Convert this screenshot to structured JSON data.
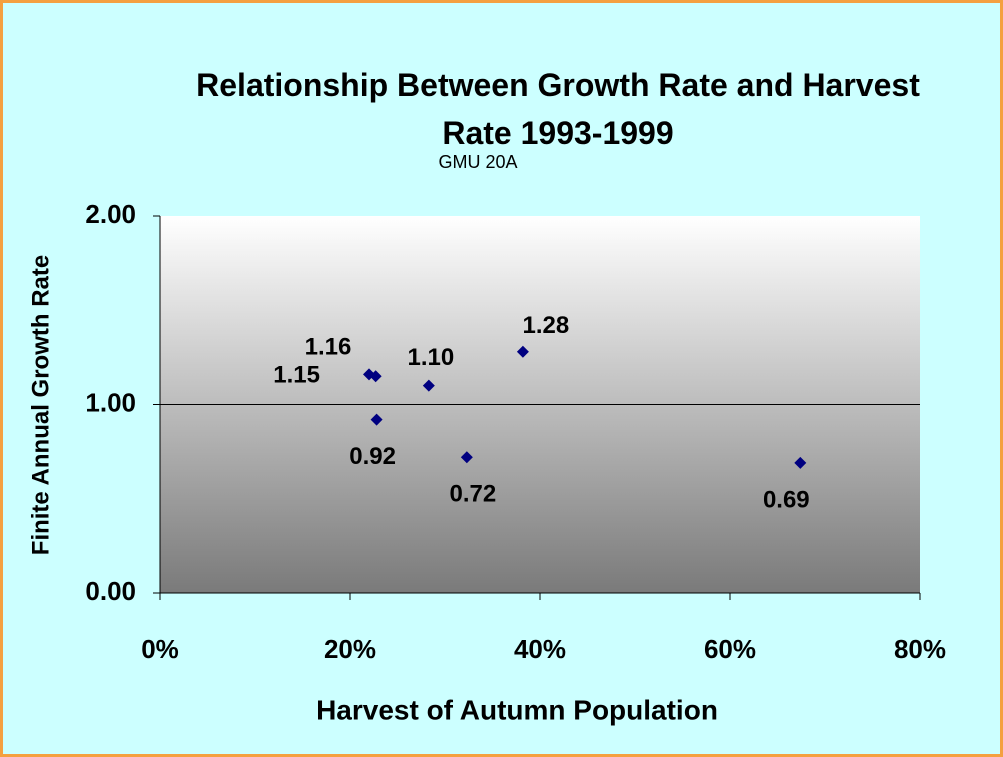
{
  "chart_data": {
    "type": "scatter",
    "title": "Relationship Between Growth Rate and Harvest Rate 1993-1999",
    "subtitle": "GMU 20A",
    "x_label": "Harvest of Autumn Population",
    "y_label": "Finite Annual Growth Rate",
    "x": [
      22,
      22.7,
      22.8,
      28.3,
      38.2,
      32.3,
      67.4
    ],
    "values": [
      1.16,
      1.15,
      0.92,
      1.1,
      1.28,
      0.72,
      0.69
    ],
    "value_labels": [
      "1.16",
      "1.15",
      "0.92",
      "1.10",
      "1.28",
      "0.72",
      "0.69"
    ],
    "color": "#000080",
    "xlim": [
      0,
      80
    ],
    "xticks": [
      {
        "value": 0,
        "label": "0%"
      },
      {
        "value": 20,
        "label": "20%"
      },
      {
        "value": 40,
        "label": "40%"
      },
      {
        "value": 60,
        "label": "60%"
      },
      {
        "value": 80,
        "label": "80%"
      }
    ],
    "ylim": [
      0,
      2
    ],
    "yticks": [
      {
        "value": 0,
        "label": "0.00"
      },
      {
        "value": 1,
        "label": "1.00"
      },
      {
        "value": 2,
        "label": "2.00"
      }
    ],
    "grid": true
  }
}
